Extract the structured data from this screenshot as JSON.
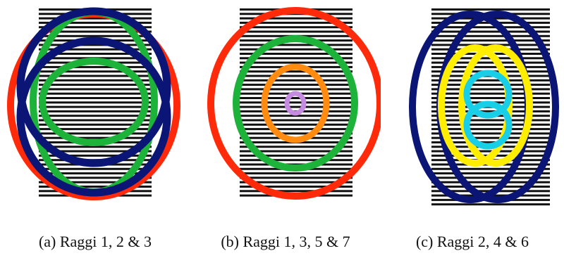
{
  "colors": {
    "stripes": "#111111",
    "red": "#ff2a0a",
    "green": "#1db33a",
    "navy": "#0a1575",
    "orange": "#ff8c10",
    "lilac": "#c58be0",
    "yellow": "#ffee00",
    "cyan": "#19cfe8"
  },
  "figures": [
    {
      "caption": "(a) Raggi 1, 2 & 3",
      "rings": [
        {
          "name": "ring-red-outer",
          "color": "red"
        },
        {
          "name": "ring-green-tall",
          "color": "green"
        },
        {
          "name": "ring-navy-upper",
          "color": "navy"
        },
        {
          "name": "ring-navy-lower",
          "color": "navy"
        },
        {
          "name": "ring-green-inner",
          "color": "green"
        }
      ]
    },
    {
      "caption": "(b) Raggi 1, 3, 5 & 7",
      "rings": [
        {
          "name": "ring-red-outer",
          "color": "red"
        },
        {
          "name": "ring-green",
          "color": "green"
        },
        {
          "name": "ring-orange",
          "color": "orange"
        },
        {
          "name": "ring-lilac-center",
          "color": "lilac"
        }
      ]
    },
    {
      "caption": "(c) Raggi 2, 4 & 6",
      "rings": [
        {
          "name": "ring-navy-left",
          "color": "navy"
        },
        {
          "name": "ring-navy-right",
          "color": "navy"
        },
        {
          "name": "ring-yellow-left",
          "color": "yellow"
        },
        {
          "name": "ring-yellow-right",
          "color": "yellow"
        },
        {
          "name": "ring-cyan-upper",
          "color": "cyan"
        },
        {
          "name": "ring-cyan-lower",
          "color": "cyan"
        }
      ]
    }
  ]
}
